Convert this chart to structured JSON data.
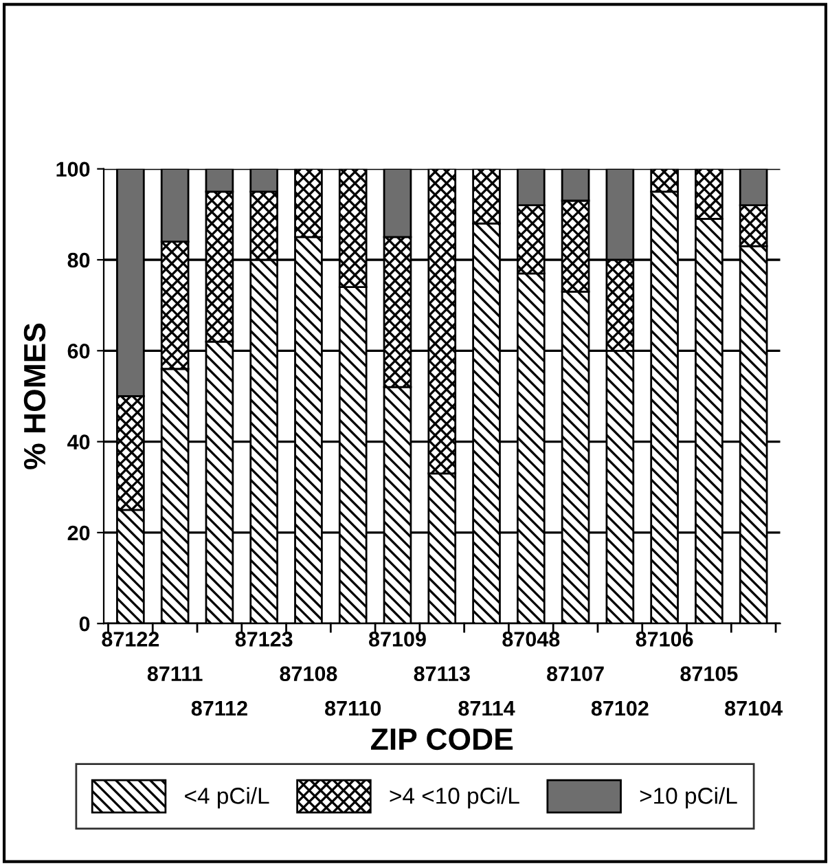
{
  "chart_data": {
    "type": "bar",
    "stacked": true,
    "ylabel": "% HOMES",
    "xlabel": "ZIP CODE",
    "categories": [
      "87122",
      "87111",
      "87112",
      "87123",
      "87108",
      "87110",
      "87109",
      "87113",
      "87114",
      "87048",
      "87107",
      "87102",
      "87106",
      "87105",
      "87104"
    ],
    "series": [
      {
        "name": "<4 pCi/L",
        "color": "#000000",
        "values": [
          25,
          56,
          62,
          80,
          85,
          74,
          52,
          33,
          88,
          77,
          73,
          60,
          95,
          89,
          83
        ]
      },
      {
        "name": ">4 <10 pCi/L",
        "color": "#000000",
        "values": [
          25,
          28,
          33,
          15,
          15,
          26,
          33,
          67,
          12,
          15,
          20,
          20,
          5,
          11,
          9
        ]
      },
      {
        "name": ">10 pCi/L",
        "color": "#6e6e6e",
        "values": [
          50,
          16,
          5,
          5,
          null,
          null,
          15,
          null,
          null,
          8,
          7,
          20,
          null,
          null,
          8
        ]
      }
    ],
    "ylim": [
      0,
      100
    ],
    "yticks": [
      0,
      20,
      40,
      60,
      80,
      100
    ],
    "grid": "y",
    "legend": "bottom"
  }
}
